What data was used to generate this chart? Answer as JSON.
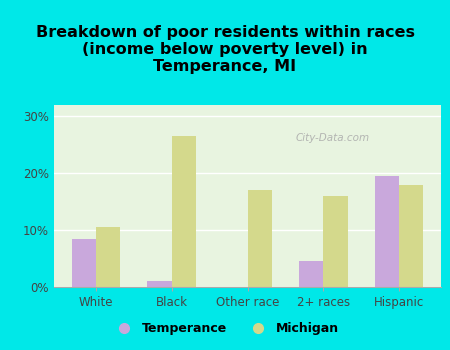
{
  "title": "Breakdown of poor residents within races\n(income below poverty level) in\nTemperance, MI",
  "categories": [
    "White",
    "Black",
    "Other race",
    "2+ races",
    "Hispanic"
  ],
  "temperance_values": [
    8.5,
    1.0,
    0,
    4.5,
    19.5
  ],
  "michigan_values": [
    10.5,
    26.5,
    17.0,
    16.0,
    18.0
  ],
  "temperance_color": "#c9a8dc",
  "michigan_color": "#d4d98c",
  "background_outer": "#00e8e8",
  "background_inner_top": "#e8f4e0",
  "background_inner_bottom": "#f5faf0",
  "ylim": [
    0,
    32
  ],
  "yticks": [
    0,
    10,
    20,
    30
  ],
  "ytick_labels": [
    "0%",
    "10%",
    "20%",
    "30%"
  ],
  "bar_width": 0.32,
  "legend_label_temperance": "Temperance",
  "legend_label_michigan": "Michigan",
  "title_fontsize": 11.5,
  "tick_fontsize": 8.5,
  "legend_fontsize": 9,
  "watermark": "City-Data.com"
}
